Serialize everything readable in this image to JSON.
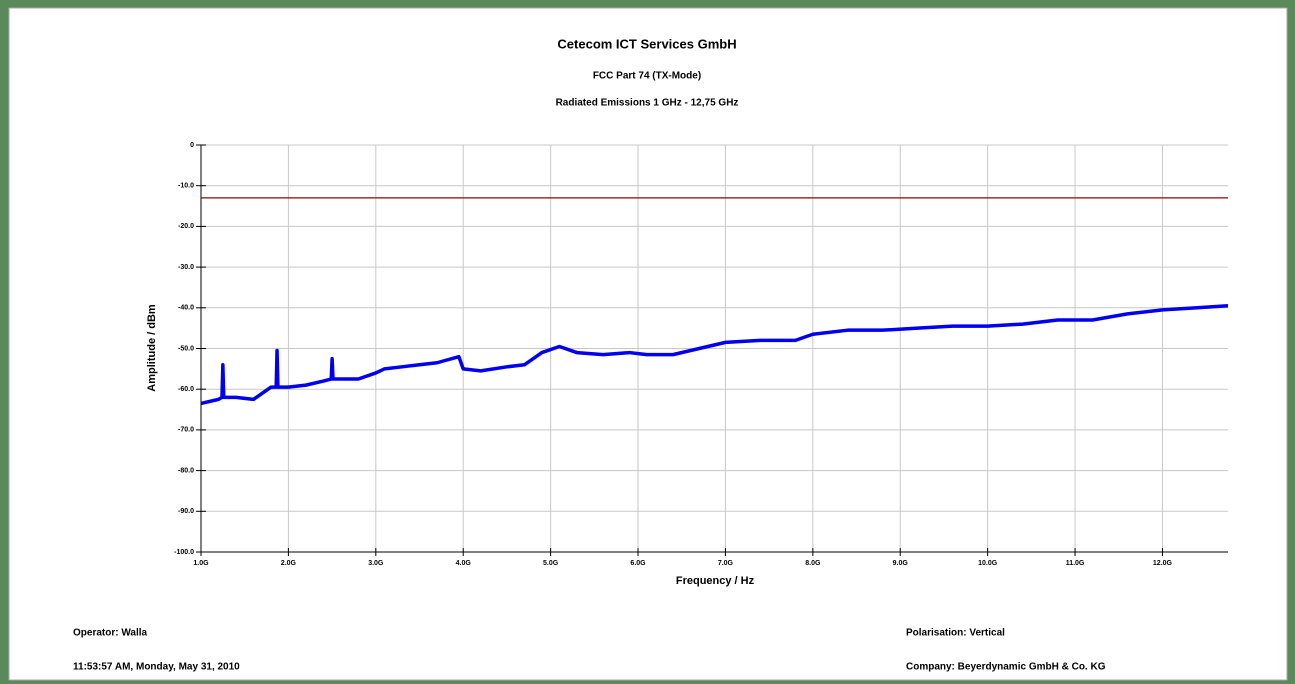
{
  "chart_data": {
    "type": "line",
    "title": "Cetecom ICT Services GmbH",
    "subtitles": [
      "FCC Part 74 (TX-Mode)",
      "Radiated Emissions 1 GHz - 12,75 GHz"
    ],
    "xlabel": "Frequency / Hz",
    "ylabel": "Amplitude / dBm",
    "x": [
      1000000000,
      1200000000,
      1240000000,
      1250000000,
      1260000000,
      1400000000,
      1600000000,
      1700000000,
      1800000000,
      1860000000,
      1870000000,
      1880000000,
      2000000000,
      2200000000,
      2400000000,
      2490000000,
      2500000000,
      2510000000,
      2600000000,
      2800000000,
      3000000000,
      3100000000,
      3300000000,
      3500000000,
      3700000000,
      3950000000,
      4000000000,
      4200000000,
      4500000000,
      4700000000,
      4900000000,
      5100000000,
      5300000000,
      5600000000,
      5900000000,
      6100000000,
      6400000000,
      6700000000,
      7000000000,
      7400000000,
      7800000000,
      8000000000,
      8400000000,
      8800000000,
      9200000000,
      9600000000,
      10000000000,
      10400000000,
      10800000000,
      11200000000,
      11600000000,
      12000000000,
      12400000000,
      12750000000
    ],
    "values": [
      -63.5,
      -62.5,
      -62,
      -54,
      -62,
      -62,
      -62.5,
      -61,
      -59.5,
      -59.5,
      -50.5,
      -59.5,
      -59.5,
      -59,
      -58,
      -57.5,
      -52.5,
      -57.5,
      -57.5,
      -57.5,
      -56,
      -55,
      -54.5,
      -54,
      -53.5,
      -52,
      -55,
      -55.5,
      -54.5,
      -54,
      -51,
      -49.5,
      -51,
      -51.5,
      -51,
      -51.5,
      -51.5,
      -50,
      -48.5,
      -48,
      -48,
      -46.5,
      -45.5,
      -45.5,
      -45,
      -44.5,
      -44.5,
      -44,
      -43,
      -43,
      -41.5,
      -40.5,
      -40,
      -39.5
    ],
    "color": "#0000ee",
    "limit": {
      "value": -13,
      "color": "#990000"
    },
    "xlim": [
      1000000000,
      12750000000
    ],
    "xticks": [
      {
        "value": 1000000000,
        "label": "1.0G"
      },
      {
        "value": 2000000000,
        "label": "2.0G"
      },
      {
        "value": 3000000000,
        "label": "3.0G"
      },
      {
        "value": 4000000000,
        "label": "4.0G"
      },
      {
        "value": 5000000000,
        "label": "5.0G"
      },
      {
        "value": 6000000000,
        "label": "6.0G"
      },
      {
        "value": 7000000000,
        "label": "7.0G"
      },
      {
        "value": 8000000000,
        "label": "8.0G"
      },
      {
        "value": 9000000000,
        "label": "9.0G"
      },
      {
        "value": 10000000000,
        "label": "10.0G"
      },
      {
        "value": 11000000000,
        "label": "11.0G"
      },
      {
        "value": 12000000000,
        "label": "12.0G"
      }
    ],
    "ylim": [
      -100,
      0
    ],
    "yticks": [
      0,
      {
        "value": -10,
        "label": "-10.0"
      },
      {
        "value": -20,
        "label": "-20.0"
      },
      {
        "value": -30,
        "label": "-30.0"
      },
      {
        "value": -40,
        "label": "-40.0"
      },
      {
        "value": -50,
        "label": "-50.0"
      },
      {
        "value": -60,
        "label": "-60.0"
      },
      {
        "value": -70,
        "label": "-70.0"
      },
      {
        "value": -80,
        "label": "-80.0"
      },
      {
        "value": -90,
        "label": "-90.0"
      },
      {
        "value": -100,
        "label": "-100.0"
      }
    ],
    "grid": true
  },
  "footer": {
    "operator": "Operator: Walla",
    "timestamp": "11:53:57 AM, Monday, May 31, 2010",
    "polarisation": "Polarisation: Vertical",
    "company": "Company: Beyerdynamic GmbH & Co. KG"
  }
}
